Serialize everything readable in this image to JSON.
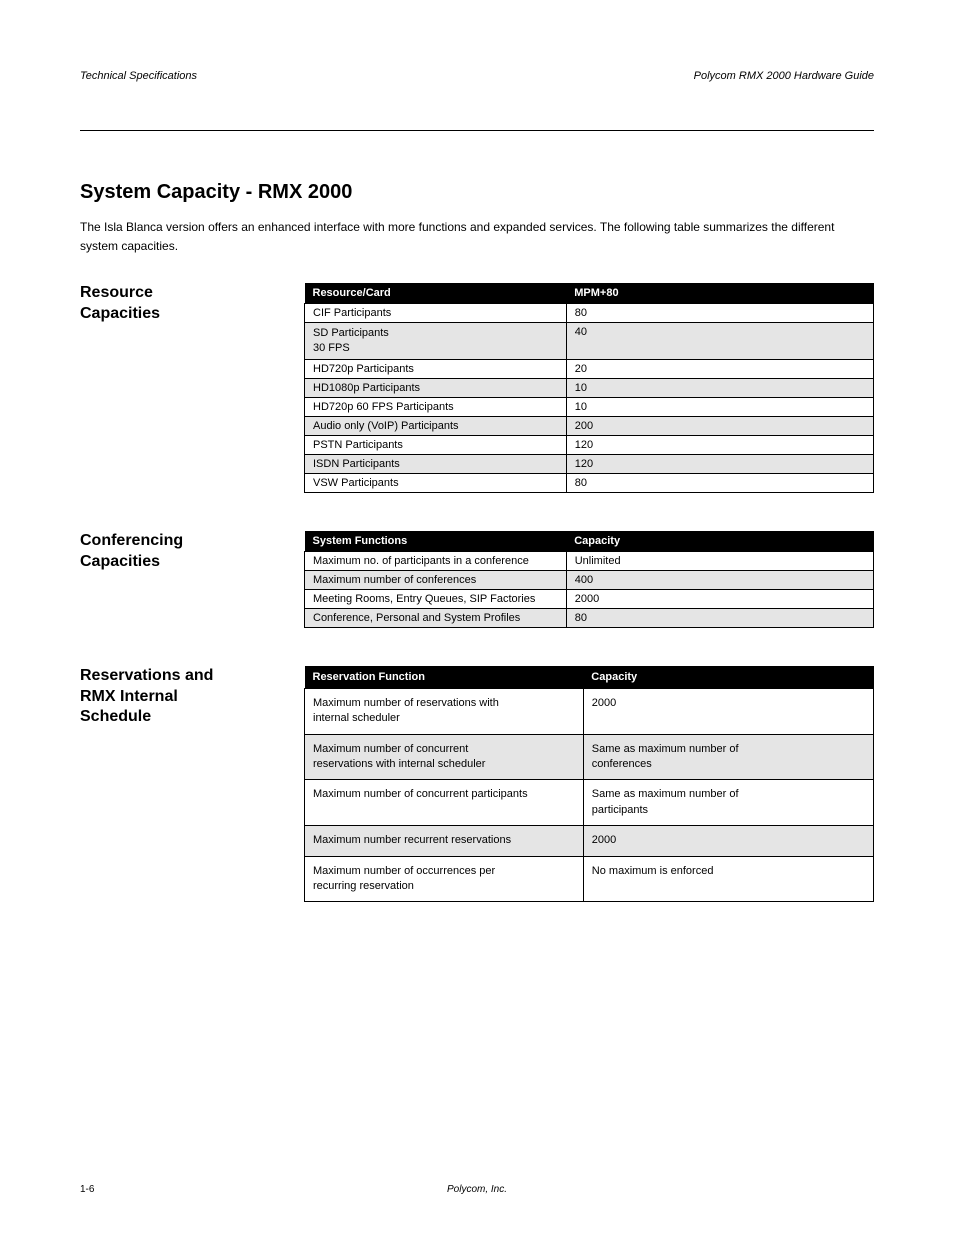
{
  "header": {
    "left": "Technical Specifications",
    "right": "Polycom RMX 2000 Hardware Guide"
  },
  "section_title": "System Capacity - RMX 2000",
  "intro": "The Isla Blanca version offers an enhanced interface with more functions and expanded services. The following table summarizes the different system capacities.",
  "blocks": {
    "resources": {
      "heading_lines": [
        "Resource",
        "Capacities"
      ],
      "table": {
        "columns": [
          "Resource/Card",
          "MPM+80"
        ],
        "rows": [
          {
            "c0": "CIF Participants",
            "c1": "80",
            "shade": false
          },
          {
            "c0_lines": [
              "SD Participants",
              "30 FPS"
            ],
            "c1": "40",
            "shade": true
          },
          {
            "c0": "HD720p Participants",
            "c1": "20",
            "shade": false
          },
          {
            "c0": "HD1080p Participants",
            "c1": "10",
            "shade": true
          },
          {
            "c0": "HD720p 60 FPS Participants",
            "c1": "10",
            "shade": false
          },
          {
            "c0": "Audio only (VoIP) Participants",
            "c1": "200",
            "shade": true
          },
          {
            "c0": "PSTN Participants",
            "c1": "120",
            "shade": false
          },
          {
            "c0": "ISDN Participants",
            "c1": "120",
            "shade": true
          },
          {
            "c0": "VSW Participants",
            "c1": "80",
            "shade": false
          }
        ]
      }
    },
    "conferencing": {
      "heading_lines": [
        "Conferencing",
        "Capacities"
      ],
      "table": {
        "columns": [
          "System Functions",
          "Capacity"
        ],
        "rows": [
          {
            "c0": "Maximum no. of participants in a conference",
            "c1": "Unlimited",
            "shade": false
          },
          {
            "c0": "Maximum number of conferences",
            "c1": "400",
            "shade": true
          },
          {
            "c0": "Meeting Rooms, Entry Queues, SIP Factories",
            "c1": "2000",
            "shade": false
          },
          {
            "c0": "Conference, Personal and System Profiles",
            "c1": "80",
            "shade": true
          }
        ]
      }
    },
    "scheduler": {
      "heading_lines": [
        "Reservations and",
        "RMX Internal",
        "Schedule"
      ],
      "table": {
        "columns": [
          "Reservation Function",
          "Capacity"
        ],
        "rows": [
          {
            "c0_lines": [
              "Maximum number of reservations with",
              "internal scheduler"
            ],
            "c1": "2000",
            "shade": false
          },
          {
            "c0_lines": [
              "Maximum number of concurrent",
              "reservations with internal scheduler"
            ],
            "c1_lines": [
              "Same as maximum number of",
              "conferences"
            ],
            "shade": true
          },
          {
            "c0": "Maximum number of concurrent participants",
            "c1_lines": [
              "Same as maximum number of",
              "participants"
            ],
            "shade": false
          },
          {
            "c0": "Maximum number recurrent reservations",
            "c1": "2000",
            "shade": true
          },
          {
            "c0_lines": [
              "Maximum number of occurrences per",
              "recurring reservation"
            ],
            "c1": "No maximum is enforced",
            "shade": false
          }
        ]
      }
    }
  },
  "footer": {
    "page": "1-6",
    "text": "Polycom, Inc."
  }
}
